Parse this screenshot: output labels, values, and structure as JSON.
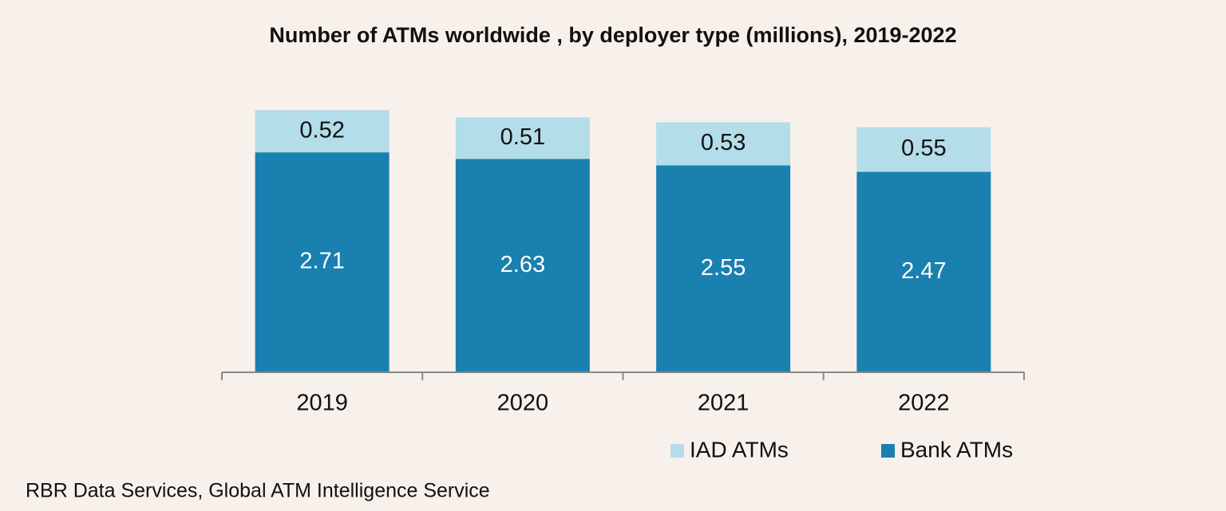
{
  "chart_data": {
    "type": "stacked_bar",
    "title": "Number of ATMs worldwide , by deployer type (millions), 2019-2022",
    "categories": [
      "2019",
      "2020",
      "2021",
      "2022"
    ],
    "series": [
      {
        "name": "Bank ATMs",
        "color": "#1a80b0",
        "values": [
          2.71,
          2.63,
          2.55,
          2.47
        ]
      },
      {
        "name": "IAD ATMs",
        "color": "#b3dde8",
        "values": [
          0.52,
          0.51,
          0.53,
          0.55
        ]
      }
    ],
    "source": "RBR Data Services, Global ATM Intelligence Service"
  }
}
